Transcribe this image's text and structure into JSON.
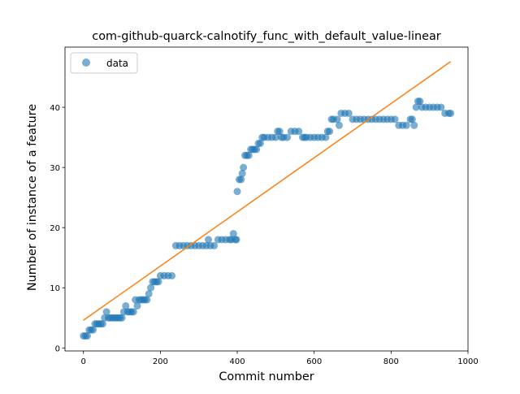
{
  "chart_data": {
    "type": "scatter",
    "title": "com-github-quarck-calnotify_func_with_default_value-linear",
    "xlabel": "Commit number",
    "ylabel": "Number of instance of a feature",
    "xlim": [
      -48,
      1000
    ],
    "ylim": [
      -0.5,
      50
    ],
    "x_ticks": [
      0,
      200,
      400,
      600,
      800,
      1000
    ],
    "y_ticks": [
      0,
      10,
      20,
      30,
      40
    ],
    "grid": false,
    "legend": {
      "placement": "top-left",
      "entries": [
        "data"
      ]
    },
    "colors": {
      "data": "#1f77b4",
      "fit": "#ff7f0e"
    },
    "series": [
      {
        "name": "data",
        "kind": "scatter",
        "x": [
          0,
          5,
          10,
          15,
          20,
          25,
          30,
          35,
          40,
          45,
          50,
          55,
          60,
          65,
          70,
          75,
          80,
          85,
          90,
          95,
          100,
          105,
          110,
          115,
          120,
          125,
          130,
          135,
          140,
          145,
          150,
          155,
          160,
          165,
          170,
          175,
          180,
          185,
          190,
          195,
          200,
          210,
          220,
          230,
          240,
          250,
          260,
          270,
          280,
          290,
          300,
          310,
          320,
          325,
          330,
          340,
          350,
          360,
          370,
          380,
          385,
          390,
          395,
          398,
          400,
          405,
          410,
          413,
          416,
          420,
          425,
          430,
          435,
          440,
          445,
          450,
          455,
          460,
          465,
          470,
          480,
          490,
          500,
          505,
          510,
          515,
          520,
          530,
          540,
          550,
          560,
          570,
          575,
          580,
          590,
          600,
          610,
          620,
          630,
          635,
          640,
          645,
          650,
          660,
          665,
          670,
          680,
          690,
          700,
          710,
          720,
          730,
          740,
          750,
          760,
          770,
          780,
          790,
          800,
          810,
          820,
          830,
          840,
          850,
          855,
          860,
          865,
          870,
          875,
          880,
          890,
          900,
          910,
          920,
          930,
          940,
          950,
          955
        ],
        "y": [
          2,
          2,
          2,
          3,
          3,
          3,
          4,
          4,
          4,
          4,
          4,
          5,
          6,
          5,
          5,
          5,
          5,
          5,
          5,
          5,
          5,
          6,
          7,
          6,
          6,
          6,
          6,
          8,
          7,
          8,
          8,
          8,
          8,
          8,
          9,
          10,
          11,
          11,
          11,
          11,
          12,
          12,
          12,
          12,
          17,
          17,
          17,
          17,
          17,
          17,
          17,
          17,
          17,
          18,
          17,
          17,
          18,
          18,
          18,
          18,
          18,
          19,
          18,
          18,
          26,
          28,
          28,
          29,
          30,
          32,
          32,
          32,
          33,
          33,
          33,
          33,
          34,
          34,
          35,
          35,
          35,
          35,
          35,
          36,
          36,
          35,
          35,
          35,
          36,
          36,
          36,
          35,
          35,
          35,
          35,
          35,
          35,
          35,
          35,
          36,
          36,
          38,
          38,
          38,
          37,
          39,
          39,
          39,
          38,
          38,
          38,
          38,
          38,
          38,
          38,
          38,
          38,
          38,
          38,
          38,
          37,
          37,
          37,
          38,
          38,
          37,
          40,
          41,
          41,
          40,
          40,
          40,
          40,
          40,
          40,
          39,
          39,
          39
        ]
      },
      {
        "name": "",
        "kind": "line",
        "x": [
          0,
          955
        ],
        "y": [
          4.6,
          47.6
        ]
      }
    ]
  }
}
